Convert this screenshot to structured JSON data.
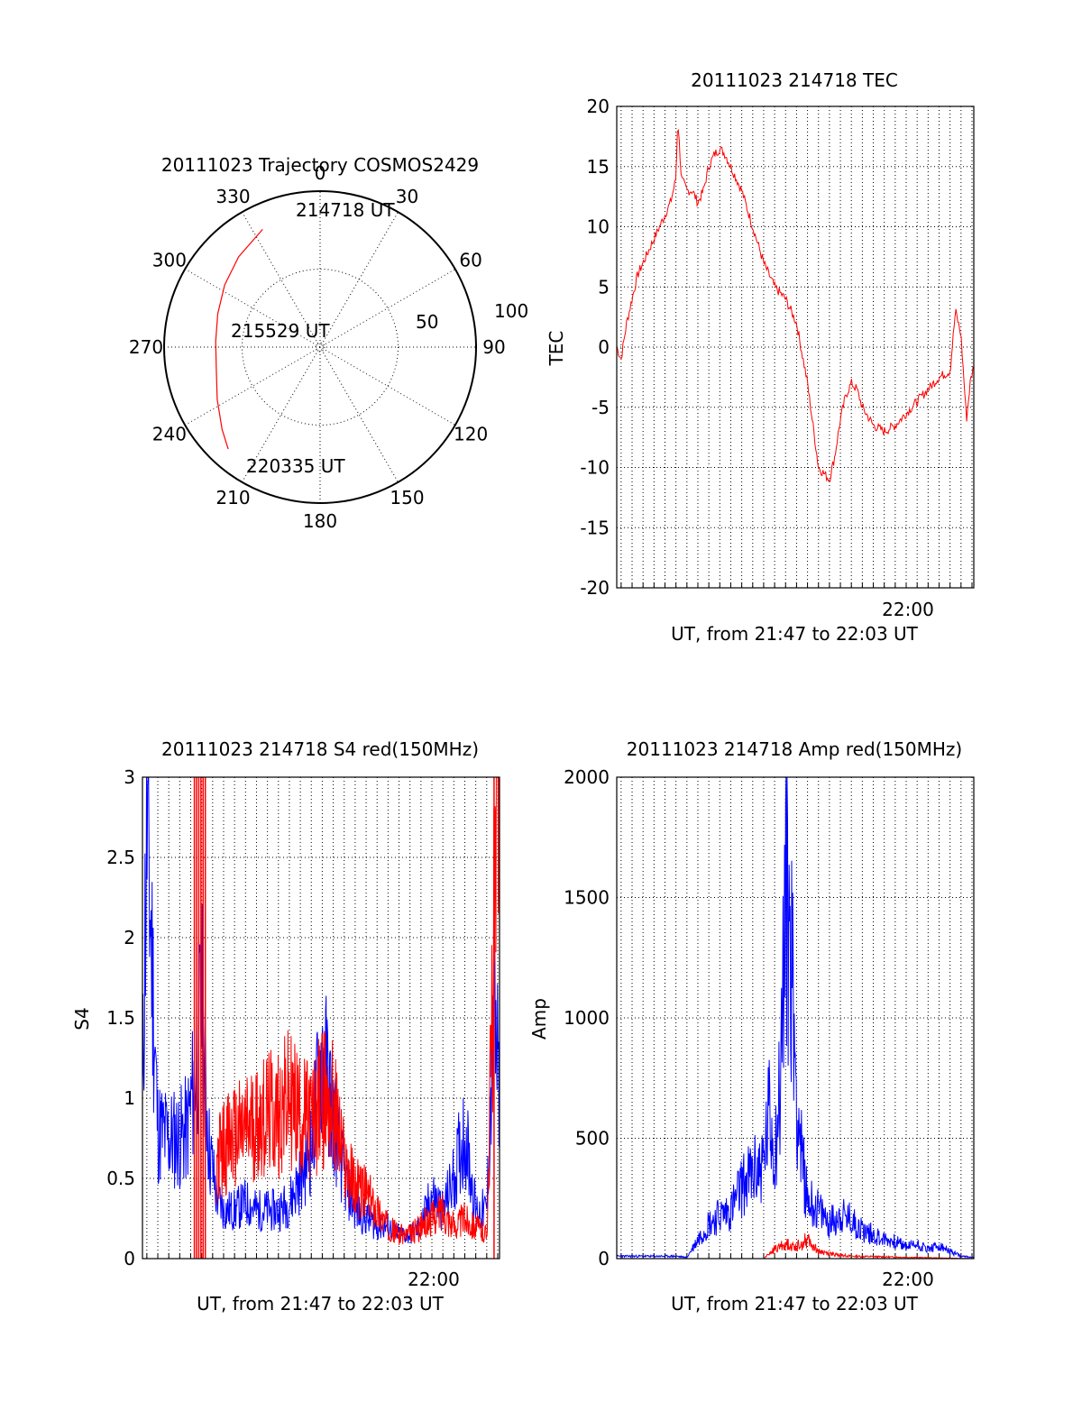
{
  "chart_data": [
    {
      "type": "polar",
      "title": "20111023 Trajectory COSMOS2429",
      "angle_labels": [
        "0",
        "30",
        "60",
        "90",
        "120",
        "150",
        "180",
        "210",
        "240",
        "270",
        "300",
        "330"
      ],
      "radial_labels": [
        "50",
        "100"
      ],
      "rlim": [
        0,
        100
      ],
      "annotations": [
        "214718 UT",
        "215529 UT",
        "220335 UT"
      ],
      "series": [
        {
          "color": "#ff0000",
          "points": [
            [
              334,
              84
            ],
            [
              318,
              78
            ],
            [
              303,
              73
            ],
            [
              288,
              69
            ],
            [
              273,
              67
            ],
            [
              258,
              68
            ],
            [
              243,
              74
            ],
            [
              230,
              82
            ],
            [
              222,
              88
            ]
          ]
        }
      ],
      "grid": true
    },
    {
      "type": "line",
      "title": "20111023 214718 TEC",
      "xlabel": "UT, from 21:47 to 22:03 UT",
      "ylabel": "TEC",
      "xtick_label": "22:00",
      "xlim": [
        "21:47:18",
        "22:03:35"
      ],
      "ylim": [
        -20,
        20
      ],
      "yticks": [
        "20",
        "15",
        "10",
        "5",
        "0",
        "-5",
        "-10",
        "-15",
        "-20"
      ],
      "grid": true,
      "series": [
        {
          "color": "#ff0000",
          "x": [
            "21:47:18",
            "21:47:30",
            "21:47:45",
            "21:48:00",
            "21:48:15",
            "21:48:30",
            "21:48:45",
            "21:49:00",
            "21:49:15",
            "21:49:30",
            "21:49:45",
            "21:50:00",
            "21:50:05",
            "21:50:15",
            "21:50:30",
            "21:50:45",
            "21:51:00",
            "21:51:15",
            "21:51:30",
            "21:51:45",
            "21:52:00",
            "21:52:15",
            "21:52:30",
            "21:53:00",
            "21:53:30",
            "21:54:00",
            "21:54:30",
            "21:55:00",
            "21:55:30",
            "21:56:00",
            "21:56:30",
            "21:57:00",
            "21:57:15",
            "21:57:30",
            "21:57:45",
            "21:58:00",
            "21:58:15",
            "21:58:30",
            "21:59:00",
            "21:59:30",
            "22:00:00",
            "22:00:30",
            "22:01:00",
            "22:01:30",
            "22:02:00",
            "22:02:30",
            "22:02:45",
            "22:03:00",
            "22:03:15",
            "22:03:25",
            "22:03:35"
          ],
          "values": [
            0,
            -1,
            2,
            4,
            6,
            7,
            8,
            9,
            10,
            11,
            12,
            14,
            19,
            14,
            13,
            13,
            12,
            13,
            15,
            16,
            16.5,
            16,
            15,
            13,
            10,
            7,
            5,
            4,
            2,
            -3,
            -10,
            -11,
            -9,
            -6,
            -4,
            -3,
            -3.5,
            -5,
            -6.5,
            -7,
            -6.5,
            -5.5,
            -4.5,
            -3.5,
            -2.5,
            -2,
            3,
            1,
            -6,
            -3,
            -1.5
          ]
        }
      ]
    },
    {
      "type": "line",
      "title": "20111023 214718 S4 red(150MHz)",
      "xlabel": "UT, from 21:47 to 22:03 UT",
      "ylabel": "S4",
      "xtick_label": "22:00",
      "xlim": [
        "21:47:18",
        "22:03:35"
      ],
      "ylim": [
        0,
        3
      ],
      "yticks": [
        "3",
        "2.5",
        "2",
        "1.5",
        "1",
        "0.5",
        "0"
      ],
      "grid": true,
      "series": [
        {
          "color": "#0000ff",
          "x": [
            "21:47:18",
            "21:47:30",
            "21:48:00",
            "21:48:30",
            "21:49:00",
            "21:49:20",
            "21:49:40",
            "21:50:00",
            "21:50:20",
            "21:50:40",
            "21:51:00",
            "21:51:30",
            "21:52:00",
            "21:52:30",
            "21:53:00",
            "21:53:30",
            "21:54:00",
            "21:54:30",
            "21:55:00",
            "21:55:30",
            "21:56:00",
            "21:56:30",
            "21:57:00",
            "21:57:30",
            "21:58:00",
            "21:58:30",
            "21:59:00",
            "21:59:30",
            "22:00:00",
            "22:00:30",
            "22:01:00",
            "22:01:30",
            "22:02:00",
            "22:02:30",
            "22:03:00",
            "22:03:20",
            "22:03:35"
          ],
          "values": [
            1.0,
            2.8,
            0.8,
            0.75,
            0.75,
            0.8,
            1.1,
            1.6,
            0.7,
            0.4,
            0.3,
            0.3,
            0.35,
            0.3,
            0.3,
            0.3,
            0.35,
            0.5,
            0.7,
            1.3,
            0.9,
            0.5,
            0.3,
            0.25,
            0.2,
            0.2,
            0.15,
            0.15,
            0.2,
            0.4,
            0.3,
            0.5,
            0.8,
            0.3,
            0.3,
            1.5,
            1.0
          ]
        },
        {
          "color": "#ff0000",
          "x": [
            "21:50:40",
            "21:51:00",
            "21:51:30",
            "21:52:00",
            "21:52:30",
            "21:53:00",
            "21:53:30",
            "21:54:00",
            "21:54:30",
            "21:55:00",
            "21:55:30",
            "21:56:00",
            "21:56:30",
            "21:57:00",
            "21:57:30",
            "21:58:00",
            "21:58:30",
            "21:59:00",
            "21:59:30",
            "22:00:00",
            "22:00:30",
            "22:01:00",
            "22:01:30",
            "22:02:00",
            "22:02:30",
            "22:03:00",
            "22:03:20",
            "22:03:35"
          ],
          "values": [
            0.6,
            0.7,
            0.75,
            0.8,
            0.85,
            0.9,
            0.9,
            1.0,
            0.9,
            0.85,
            1.0,
            0.95,
            0.6,
            0.45,
            0.4,
            0.3,
            0.2,
            0.15,
            0.15,
            0.2,
            0.25,
            0.3,
            0.2,
            0.25,
            0.2,
            0.15,
            2.0,
            3.0
          ]
        }
      ],
      "vertical_spikes": {
        "color": "#ff0000",
        "x": [
          "21:49:40",
          "21:49:46",
          "21:49:52",
          "21:49:58",
          "21:50:04",
          "21:50:10",
          "22:03:20"
        ]
      }
    },
    {
      "type": "line",
      "title": "20111023 214718 Amp red(150MHz)",
      "xlabel": "UT, from 21:47 to 22:03 UT",
      "ylabel": "Amp",
      "xtick_label": "22:00",
      "xlim": [
        "21:47:18",
        "22:03:35"
      ],
      "ylim": [
        0,
        2000
      ],
      "yticks": [
        "2000",
        "1500",
        "1000",
        "500",
        "0"
      ],
      "grid": true,
      "series": [
        {
          "color": "#0000ff",
          "x": [
            "21:47:18",
            "21:48:00",
            "21:49:00",
            "21:50:00",
            "21:50:30",
            "21:51:00",
            "21:51:30",
            "21:52:00",
            "21:52:30",
            "21:53:00",
            "21:53:30",
            "21:54:00",
            "21:54:15",
            "21:54:30",
            "21:54:45",
            "21:55:00",
            "21:55:15",
            "21:55:30",
            "21:55:45",
            "21:56:00",
            "21:56:30",
            "21:57:00",
            "21:57:30",
            "21:58:00",
            "21:58:30",
            "21:59:00",
            "21:59:30",
            "22:00:00",
            "22:00:30",
            "22:01:00",
            "22:01:30",
            "22:02:00",
            "22:02:30",
            "22:03:00",
            "22:03:35"
          ],
          "values": [
            10,
            10,
            10,
            10,
            5,
            80,
            150,
            180,
            200,
            300,
            350,
            400,
            600,
            450,
            700,
            1530,
            1300,
            700,
            400,
            250,
            200,
            150,
            180,
            160,
            120,
            100,
            80,
            70,
            50,
            60,
            40,
            50,
            30,
            10,
            5
          ]
        },
        {
          "color": "#ff0000",
          "x": [
            "21:47:18",
            "21:54:00",
            "21:54:30",
            "21:55:00",
            "21:55:30",
            "21:56:00",
            "21:56:30",
            "21:57:00",
            "21:58:00",
            "22:03:35"
          ],
          "values": [
            0,
            0,
            40,
            60,
            50,
            80,
            30,
            20,
            10,
            0
          ]
        }
      ]
    }
  ]
}
